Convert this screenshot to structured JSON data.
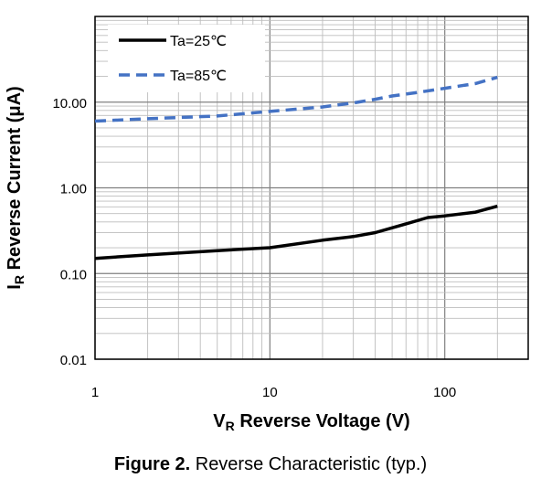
{
  "chart_data": {
    "type": "line",
    "title": "",
    "xlabel": {
      "main": "V",
      "sub": "R",
      "rest": " Reverse Voltage (V)"
    },
    "ylabel": {
      "main": "I",
      "sub": "R",
      "rest": " Reverse Current (μA)"
    },
    "xscale": "log",
    "yscale": "log",
    "xlim": [
      1,
      300
    ],
    "ylim": [
      0.01,
      100
    ],
    "x_tick_labels": [
      {
        "value": 1,
        "label": "1"
      },
      {
        "value": 10,
        "label": "10"
      },
      {
        "value": 100,
        "label": "100"
      }
    ],
    "y_tick_labels": [
      {
        "value": 0.01,
        "label": "0.01"
      },
      {
        "value": 0.1,
        "label": "0.10"
      },
      {
        "value": 1,
        "label": "1.00"
      },
      {
        "value": 10,
        "label": "10.00"
      }
    ],
    "grid": true,
    "legend_position": "top-left",
    "series": [
      {
        "name": "Ta=25℃",
        "color": "#000000",
        "style": "solid",
        "points": [
          [
            1,
            0.15
          ],
          [
            2,
            0.165
          ],
          [
            5,
            0.185
          ],
          [
            10,
            0.2
          ],
          [
            20,
            0.245
          ],
          [
            30,
            0.27
          ],
          [
            40,
            0.3
          ],
          [
            60,
            0.38
          ],
          [
            80,
            0.45
          ],
          [
            100,
            0.47
          ],
          [
            150,
            0.52
          ],
          [
            200,
            0.61
          ]
        ]
      },
      {
        "name": "Ta=85℃",
        "color": "#4472C4",
        "style": "dashed",
        "points": [
          [
            1,
            6.0
          ],
          [
            2,
            6.4
          ],
          [
            5,
            6.9
          ],
          [
            10,
            7.8
          ],
          [
            20,
            8.8
          ],
          [
            30,
            9.8
          ],
          [
            40,
            10.8
          ],
          [
            50,
            11.8
          ],
          [
            70,
            13.0
          ],
          [
            100,
            14.5
          ],
          [
            150,
            16.5
          ],
          [
            200,
            19.5
          ]
        ]
      }
    ]
  },
  "caption": {
    "bold": "Figure 2.",
    "text": " Reverse Characteristic (typ.)"
  }
}
